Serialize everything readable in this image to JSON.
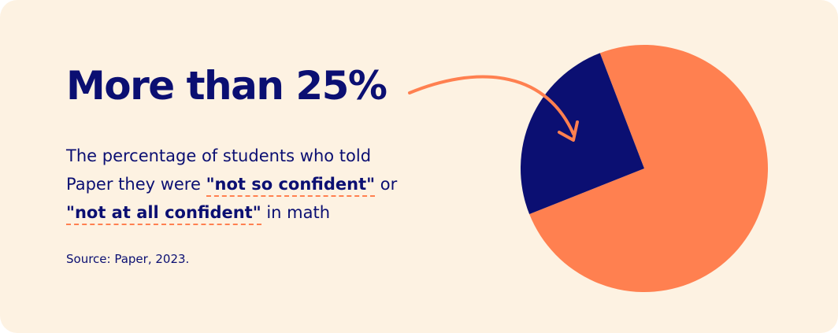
{
  "chart_data": {
    "type": "pie",
    "title": "More than 25%",
    "description": [
      {
        "text": "The percentage of students who told Paper they were ",
        "bold": false
      },
      {
        "text": "\"not so confident\"",
        "bold": true
      },
      {
        "text": " or ",
        "bold": false
      },
      {
        "text": "\"not at all confident\"",
        "bold": true
      },
      {
        "text": " in math",
        "bold": false
      }
    ],
    "source": "Source: Paper, 2023.",
    "values": [
      25.2,
      74.8
    ],
    "colors": [
      "#0b0f72",
      "#ff8050"
    ]
  }
}
